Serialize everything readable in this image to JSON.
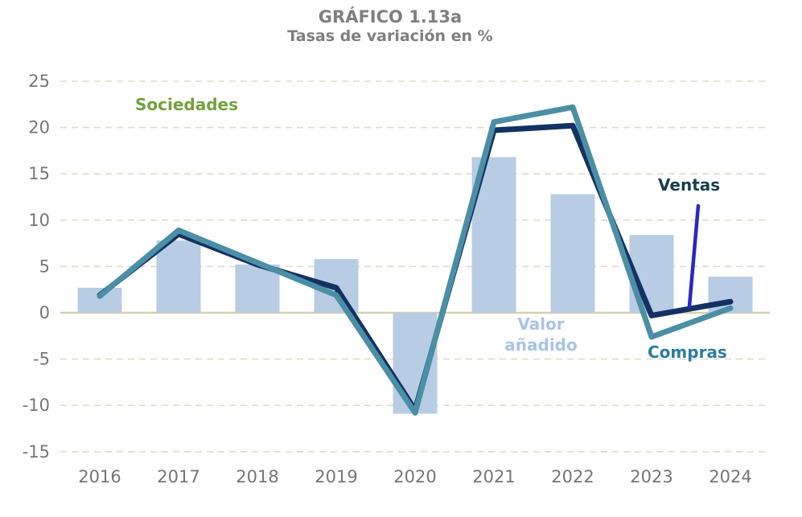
{
  "header": {
    "title": "GRÁFICO 1.13a",
    "subtitle": "Tasas de variación en %"
  },
  "chart_data": {
    "type": "bar",
    "combo": "bars + 2 lines",
    "categories": [
      "2016",
      "2017",
      "2018",
      "2019",
      "2020",
      "2021",
      "2022",
      "2023",
      "2024"
    ],
    "series": [
      {
        "name": "Valor añadido",
        "kind": "bar",
        "color": "#b8cce4",
        "values": [
          2.7,
          7.8,
          5.2,
          5.8,
          -10.9,
          16.8,
          12.8,
          8.4,
          3.9
        ]
      },
      {
        "name": "Ventas",
        "kind": "line",
        "color": "#133263",
        "values": [
          1.9,
          8.5,
          5.2,
          2.7,
          -10.5,
          19.7,
          20.2,
          -0.3,
          1.2
        ]
      },
      {
        "name": "Compras",
        "kind": "line",
        "color": "#4b8fa5",
        "values": [
          1.8,
          8.9,
          5.4,
          1.9,
          -10.8,
          20.6,
          22.2,
          -2.6,
          0.5
        ]
      }
    ],
    "title": "GRÁFICO 1.13a",
    "subtitle": "Tasas de variación en %",
    "xlabel": "",
    "ylabel": "",
    "ylim": [
      -15,
      25
    ],
    "yticks": [
      25,
      20,
      15,
      10,
      5,
      0,
      -5,
      -10,
      -15
    ],
    "grid": "horizontal dashed, solid zero line",
    "legend_position": "inline text annotations",
    "annotations": {
      "sociedades": {
        "text": "Sociedades",
        "color": "#72a23c"
      },
      "valor": {
        "text": "Valor añadido",
        "color": "#a7c4e6"
      },
      "ventas": {
        "text": "Ventas",
        "color": "#173f50"
      },
      "compras": {
        "text": "Compras",
        "color": "#2d7ca0"
      }
    },
    "colors": {
      "grid": "#dfddc8",
      "zero_line": "#d5d1ae",
      "tick_labels": "#757575",
      "leader_line": "#2828c4",
      "title_gray": "#7f7f7f"
    }
  }
}
